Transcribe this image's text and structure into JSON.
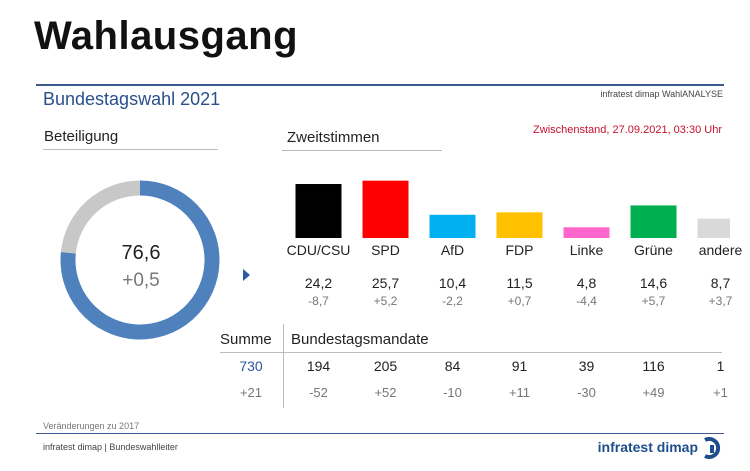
{
  "headline": "Wahlausgang",
  "subtitle": "Bundestagswahl 2021",
  "source_top": "infratest dimap WahlANALYSE",
  "section_beteiligung": "Beteiligung",
  "section_zweitstimmen": "Zweitstimmen",
  "zwischenstand": "Zwischenstand, 27.09.2021, 03:30 Uhr",
  "turnout": {
    "value": "76,6",
    "change": "+0,5"
  },
  "summe_label": "Summe",
  "mandate_label": "Bundestagsmandate",
  "summe_value": "730",
  "summe_change": "+21",
  "footnote": "Veränderungen zu 2017",
  "source_bottom": "infratest dimap | Bundeswahlleiter",
  "logo": "infratest dimap",
  "colors": {
    "accent": "#2a5aa0",
    "turnout_ring": "#4f81bd",
    "ring_rest": "#c8c8c8",
    "zwischenstand": "#c8102e"
  },
  "chart_data": [
    {
      "type": "pie",
      "values": [
        76.6,
        23.4
      ],
      "value_label": "76,6",
      "change_label": "+0,5"
    },
    {
      "type": "bar",
      "categories": [
        "CDU/CSU",
        "SPD",
        "AfD",
        "FDP",
        "Linke",
        "Grüne",
        "andere"
      ],
      "values": [
        24.2,
        25.7,
        10.4,
        11.5,
        4.8,
        14.6,
        8.7
      ],
      "value_labels": [
        "24,2",
        "25,7",
        "10,4",
        "11,5",
        "4,8",
        "14,6",
        "8,7"
      ],
      "changes": [
        "-8,7",
        "+5,2",
        "-2,2",
        "+0,7",
        "-4,4",
        "+5,7",
        "+3,7"
      ],
      "colors": [
        "#000000",
        "#ff0000",
        "#00b0f0",
        "#ffc000",
        "#ff66cc",
        "#00b050",
        "#d9d9d9"
      ],
      "ylim": [
        0,
        26
      ]
    },
    {
      "type": "table",
      "categories": [
        "CDU/CSU",
        "SPD",
        "AfD",
        "FDP",
        "Linke",
        "Grüne",
        "andere"
      ],
      "mandate": [
        "194",
        "205",
        "84",
        "91",
        "39",
        "116",
        "1"
      ],
      "mandate_changes": [
        "-52",
        "+52",
        "-10",
        "+11",
        "-30",
        "+49",
        "+1"
      ]
    }
  ]
}
